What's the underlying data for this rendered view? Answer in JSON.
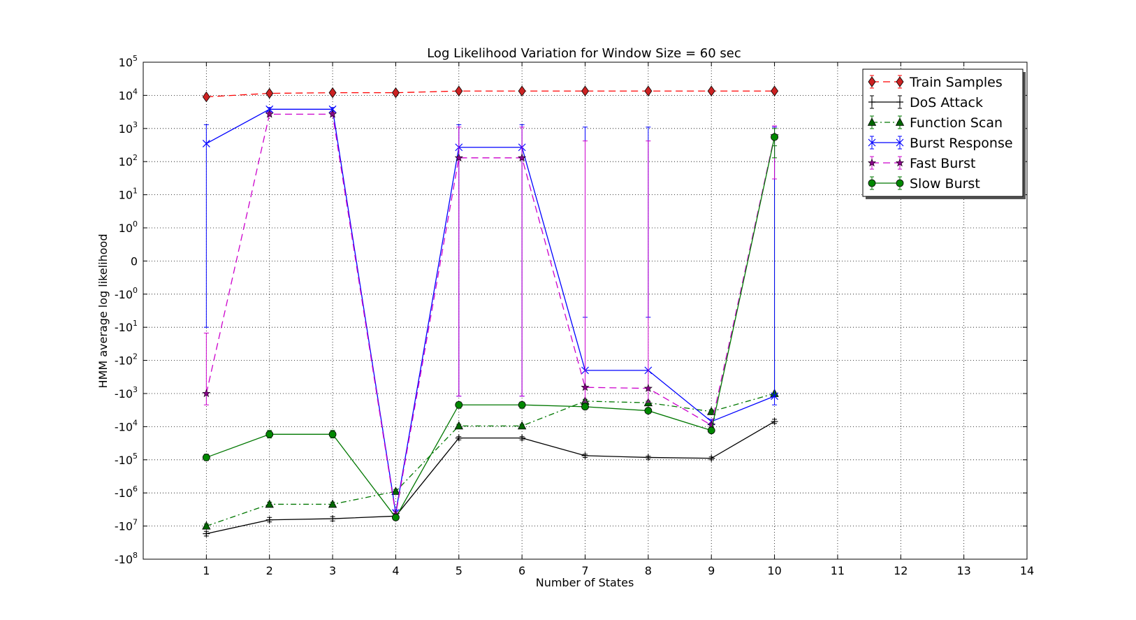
{
  "chart_data": {
    "type": "line",
    "title": "Log Likelihood Variation for Window Size = 60 sec",
    "xlabel": "Number of States",
    "ylabel": "HMM average log likelihood",
    "xlim": [
      0,
      14
    ],
    "x_ticks": [
      {
        "v": 1,
        "label": "1"
      },
      {
        "v": 2,
        "label": "2"
      },
      {
        "v": 3,
        "label": "3"
      },
      {
        "v": 4,
        "label": "4"
      },
      {
        "v": 5,
        "label": "5"
      },
      {
        "v": 6,
        "label": "6"
      },
      {
        "v": 7,
        "label": "7"
      },
      {
        "v": 8,
        "label": "8"
      },
      {
        "v": 9,
        "label": "9"
      },
      {
        "v": 10,
        "label": "10"
      },
      {
        "v": 11,
        "label": "11"
      },
      {
        "v": 12,
        "label": "12"
      },
      {
        "v": 13,
        "label": "13"
      },
      {
        "v": 14,
        "label": "14"
      }
    ],
    "y_scale": "symlog",
    "ylim": [
      -100000000,
      100000
    ],
    "y_ticks": [
      {
        "v": 100000,
        "base": "10",
        "exp": "5"
      },
      {
        "v": 10000,
        "base": "10",
        "exp": "4"
      },
      {
        "v": 1000,
        "base": "10",
        "exp": "3"
      },
      {
        "v": 100,
        "base": "10",
        "exp": "2"
      },
      {
        "v": 10,
        "base": "10",
        "exp": "1"
      },
      {
        "v": 1,
        "base": "10",
        "exp": "0"
      },
      {
        "v": 0,
        "base": "0",
        "exp": ""
      },
      {
        "v": -1,
        "base": "-10",
        "exp": "0"
      },
      {
        "v": -10,
        "base": "-10",
        "exp": "1"
      },
      {
        "v": -100,
        "base": "-10",
        "exp": "2"
      },
      {
        "v": -1000,
        "base": "-10",
        "exp": "3"
      },
      {
        "v": -10000,
        "base": "-10",
        "exp": "4"
      },
      {
        "v": -100000,
        "base": "-10",
        "exp": "5"
      },
      {
        "v": -1000000,
        "base": "-10",
        "exp": "6"
      },
      {
        "v": -10000000,
        "base": "-10",
        "exp": "7"
      },
      {
        "v": -100000000,
        "base": "-10",
        "exp": "8"
      }
    ],
    "grid": true,
    "legend_position": "top-right",
    "x": [
      1,
      2,
      3,
      4,
      5,
      6,
      7,
      8,
      9,
      10
    ],
    "series": [
      {
        "name": "Train Samples",
        "color": "#ff0000",
        "fill": "#cc2222",
        "dash": "10,6",
        "marker": "diamond",
        "values": [
          9000,
          11500,
          12000,
          12000,
          13500,
          13500,
          13500,
          13500,
          13500,
          13500
        ],
        "err_low": [],
        "err_high": []
      },
      {
        "name": "DoS Attack",
        "color": "#000000",
        "fill": "#000000",
        "dash": "",
        "marker": "plus",
        "values": [
          -17000000,
          -6500000,
          -6000000,
          -5000000,
          -22000,
          -22000,
          -75000,
          -85000,
          -90000,
          -7000
        ],
        "err_low": [
          -20000000,
          -7500000,
          -7000000,
          -6000000,
          -25000,
          -25000,
          -85000,
          -95000,
          -100000,
          -8000
        ],
        "err_high": [
          -14500000,
          -5500000,
          -5200000,
          -4200000,
          -20000,
          -20000,
          -68000,
          -78000,
          -82000,
          -6000
        ]
      },
      {
        "name": "Function Scan",
        "color": "#007700",
        "fill": "#006600",
        "dash": "8,4,2,4",
        "marker": "triangle",
        "values": [
          -10000000,
          -2200000,
          -2200000,
          -900000,
          -9500,
          -9500,
          -1700,
          -1900,
          -3500,
          -1000
        ],
        "err_low": [
          -11500000,
          -2500000,
          -2500000,
          -1000000,
          -10500,
          -10500,
          -1900,
          -2100,
          -3900,
          -1100
        ],
        "err_high": [
          -8700000,
          -1900000,
          -1900000,
          -800000,
          -8500,
          -8500,
          -1500,
          -1700,
          -3100,
          300
        ]
      },
      {
        "name": "Burst Response",
        "color": "#0000ff",
        "fill": "#0000ff",
        "dash": "",
        "marker": "x",
        "values": [
          350,
          3800,
          3800,
          -4000000,
          270,
          270,
          -200,
          -200,
          -7000,
          -1200
        ],
        "err_low": [
          -10,
          3300,
          3300,
          -4800000,
          -1200,
          -1200,
          -5,
          -5,
          -8000,
          -2200
        ],
        "err_high": [
          1300,
          4300,
          4300,
          -3300000,
          1300,
          1300,
          1100,
          1100,
          -6000,
          1100
        ]
      },
      {
        "name": "Fast Burst",
        "color": "#cc00cc",
        "fill": "#880088",
        "dash": "10,6",
        "marker": "star",
        "values": [
          -1000,
          2700,
          2700,
          -4500000,
          130,
          130,
          -650,
          -700,
          -9000,
          600
        ],
        "err_low": [
          -2200,
          2400,
          2400,
          -5200000,
          -1200,
          -1200,
          -1800,
          -1800,
          -10500,
          30
        ],
        "err_high": [
          -15,
          3100,
          3100,
          -3800000,
          1100,
          1100,
          420,
          420,
          -7700,
          1200
        ]
      },
      {
        "name": "Slow Burst",
        "color": "#007700",
        "fill": "#008800",
        "dash": "",
        "marker": "circle",
        "values": [
          -85000,
          -17000,
          -17000,
          -5500000,
          -2200,
          -2200,
          -2500,
          -3300,
          -13000,
          550
        ],
        "err_low": [
          -105000,
          -22000,
          -22000,
          -6500000,
          -2800,
          -2800,
          -2800,
          -3800,
          -15000,
          130
        ],
        "err_high": [
          -68000,
          -13000,
          -13000,
          -4700000,
          -1800,
          -1800,
          -2200,
          -2900,
          -11000,
          1000
        ]
      }
    ]
  }
}
